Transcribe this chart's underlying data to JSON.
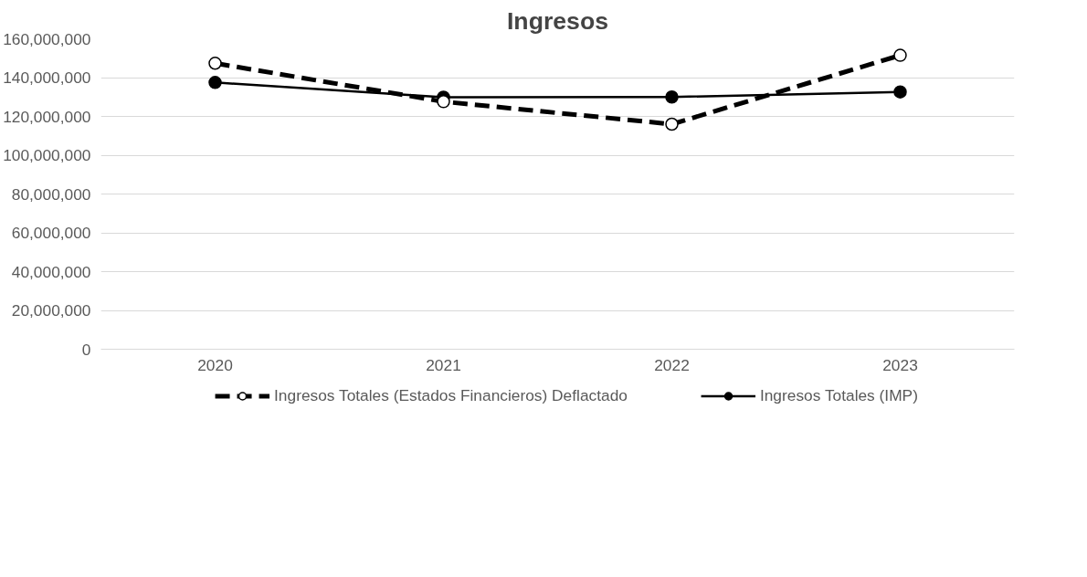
{
  "chart_data": {
    "type": "line",
    "title": "Ingresos",
    "categories": [
      "2020",
      "2021",
      "2022",
      "2023"
    ],
    "series": [
      {
        "name": "Ingresos Totales (Estados Financieros) Deflactado",
        "color": "#000000",
        "values": [
          147400000,
          127600000,
          116000000,
          151500000
        ],
        "line_style": "dashed",
        "marker": "circle"
      },
      {
        "name": "Ingresos Totales (IMP)",
        "color": "#000000",
        "values": [
          137500000,
          129900000,
          130000000,
          132600000
        ],
        "line_style": "solid",
        "marker": "circle"
      }
    ],
    "ylim": [
      0,
      160000000
    ],
    "yticks": [
      {
        "value": 0,
        "label": "0"
      },
      {
        "value": 20000000,
        "label": "20,000,000"
      },
      {
        "value": 40000000,
        "label": "40,000,000"
      },
      {
        "value": 60000000,
        "label": "60,000,000"
      },
      {
        "value": 80000000,
        "label": "80,000,000"
      },
      {
        "value": 100000000,
        "label": "100,000,000"
      },
      {
        "value": 120000000,
        "label": "120,000,000"
      },
      {
        "value": 140000000,
        "label": "140,000,000"
      },
      {
        "value": 160000000,
        "label": "160,000,000"
      }
    ],
    "grid": "y",
    "legend": "bottom"
  }
}
